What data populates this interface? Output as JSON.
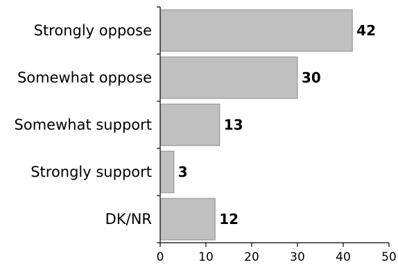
{
  "chart_data": {
    "type": "bar",
    "orientation": "horizontal",
    "title": "",
    "xlabel": "",
    "ylabel": "",
    "categories": [
      "Strongly oppose",
      "Somewhat oppose",
      "Somewhat support",
      "Strongly support",
      "DK/NR"
    ],
    "values": [
      42,
      30,
      13,
      3,
      12
    ],
    "xlim": [
      0,
      50
    ],
    "xticks": [
      0,
      10,
      20,
      30,
      40,
      50
    ],
    "grid": false,
    "legend": "none",
    "bar_color": "#c0c0c0",
    "bar_edge_color": "#8c8c8c"
  }
}
